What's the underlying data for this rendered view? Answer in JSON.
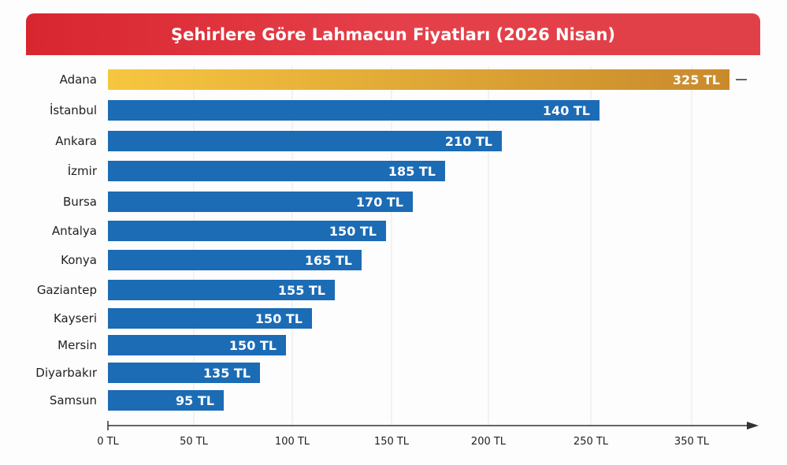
{
  "chart_data": {
    "type": "bar",
    "orientation": "horizontal",
    "title": "Şehirlere Göre Lahmacun Fiyatları (2026 Nisan)",
    "categories": [
      "Adana",
      "İstanbul",
      "Ankara",
      "İzmir",
      "Bursa",
      "Antalya",
      "Konya",
      "Gaziantep",
      "Kayseri",
      "Mersin",
      "Diyarbakır",
      "Samsun"
    ],
    "values": [
      325,
      140,
      210,
      185,
      170,
      150,
      165,
      155,
      150,
      150,
      135,
      95
    ],
    "value_labels": [
      "325 TL",
      "140 TL",
      "210 TL",
      "185 TL",
      "170 TL",
      "150 TL",
      "165 TL",
      "155 TL",
      "150 TL",
      "150 TL",
      "135 TL",
      "95 TL"
    ],
    "x_ticks": [
      "0 TL",
      "50 TL",
      "100 TL",
      "150 TL",
      "200 TL",
      "250 TL",
      "350 TL"
    ],
    "grid": true,
    "colors": {
      "highlight": "#d9a030",
      "bar": "#1c6bb5",
      "title_bg": "#de3039"
    }
  }
}
